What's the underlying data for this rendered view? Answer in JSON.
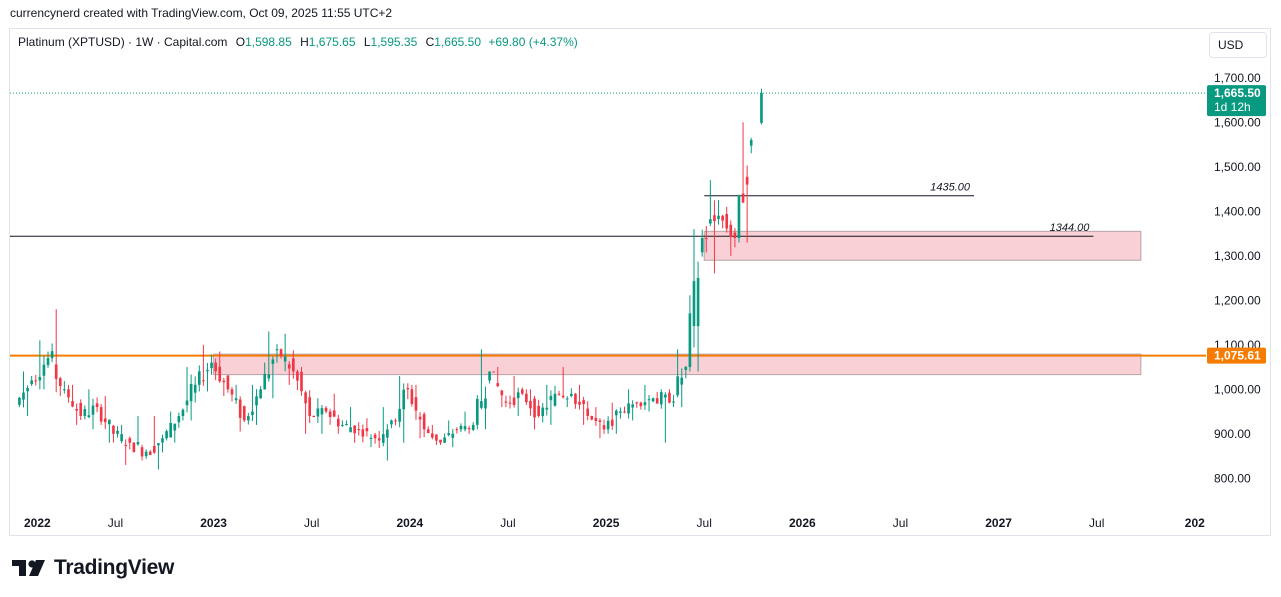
{
  "header": {
    "credit": "currencynerd created with TradingView.com, Oct 09, 2025 11:55 UTC+2"
  },
  "legend": {
    "symbol": "Platinum (XPTUSD) · 1W · Capital.com",
    "o_label": "O",
    "o_value": "1,598.85",
    "h_label": "H",
    "h_value": "1,675.65",
    "l_label": "L",
    "l_value": "1,595.35",
    "c_label": "C",
    "c_value": "1,665.50",
    "change": "+69.80 (+4.37%)"
  },
  "currency_button": "USD",
  "price_tag": {
    "price": "1,665.50",
    "countdown": "1d 12h",
    "color": "#089981"
  },
  "level_tag": {
    "price": "1,075.61",
    "color": "#f57c00"
  },
  "footer": {
    "brand": "TradingView"
  },
  "colors": {
    "up": "#089981",
    "down": "#f23645",
    "zone_fill": "#f8d0d5",
    "zone_border": "#b7a4a8"
  },
  "chart_data": {
    "type": "candlestick",
    "symbol": "Platinum (XPTUSD)",
    "timeframe": "1W",
    "y_ticks": [
      "1,700.00",
      "1,600.00",
      "1,500.00",
      "1,400.00",
      "1,300.00",
      "1,200.00",
      "1,100.00",
      "1,000.00",
      "900.00",
      "800.00"
    ],
    "y_tick_values": [
      1700,
      1600,
      1500,
      1400,
      1300,
      1200,
      1100,
      1000,
      900,
      800
    ],
    "ylim": [
      740,
      1740
    ],
    "x_ticks": [
      "2022",
      "Jul",
      "2023",
      "Jul",
      "2024",
      "Jul",
      "2025",
      "Jul",
      "2026",
      "Jul",
      "2027",
      "Jul",
      "202"
    ],
    "x_tick_months": [
      0,
      6,
      12,
      18,
      24,
      30,
      36,
      42,
      48,
      54,
      60,
      66,
      72
    ],
    "xlim_months": [
      -0.45,
      72.5
    ],
    "annotations": [
      {
        "label": "1435.00",
        "price": 1435,
        "start_month": 42.0,
        "end_month": 58.5,
        "type": "line"
      },
      {
        "label": "1344.00",
        "price": 1344,
        "start_month": -0.45,
        "end_month": 65.8,
        "type": "line"
      },
      {
        "label": "1,075.61",
        "price": 1075.61,
        "type": "horizontal-level"
      }
    ],
    "zones": [
      {
        "from_price": 1290,
        "to_price": 1355,
        "start_month": 42.0,
        "end_month": 68.7
      },
      {
        "from_price": 1033,
        "to_price": 1079,
        "start_month": 12.0,
        "end_month": 68.7
      }
    ],
    "candles_monthly_closes": [
      {
        "month": "2022-01",
        "open": 965,
        "close": 1020,
        "high": 1040,
        "low": 940
      },
      {
        "month": "2022-02",
        "open": 1020,
        "close": 1070,
        "high": 1110,
        "low": 1000
      },
      {
        "month": "2022-03",
        "open": 1070,
        "close": 1000,
        "high": 1180,
        "low": 985
      },
      {
        "month": "2022-04",
        "open": 1000,
        "close": 940,
        "high": 1010,
        "low": 920
      },
      {
        "month": "2022-05",
        "open": 940,
        "close": 960,
        "high": 1000,
        "low": 910
      },
      {
        "month": "2022-06",
        "open": 960,
        "close": 900,
        "high": 985,
        "low": 880
      },
      {
        "month": "2022-07",
        "open": 900,
        "close": 880,
        "high": 920,
        "low": 830
      },
      {
        "month": "2022-08",
        "open": 880,
        "close": 860,
        "high": 940,
        "low": 840
      },
      {
        "month": "2022-09",
        "open": 860,
        "close": 890,
        "high": 940,
        "low": 820
      },
      {
        "month": "2022-10",
        "open": 890,
        "close": 940,
        "high": 950,
        "low": 880
      },
      {
        "month": "2022-11",
        "open": 940,
        "close": 1010,
        "high": 1050,
        "low": 930
      },
      {
        "month": "2022-12",
        "open": 1010,
        "close": 1060,
        "high": 1100,
        "low": 995
      },
      {
        "month": "2023-01",
        "open": 1060,
        "close": 1000,
        "high": 1085,
        "low": 985
      },
      {
        "month": "2023-02",
        "open": 1000,
        "close": 930,
        "high": 1010,
        "low": 905
      },
      {
        "month": "2023-03",
        "open": 930,
        "close": 1000,
        "high": 1010,
        "low": 920
      },
      {
        "month": "2023-04",
        "open": 1000,
        "close": 1090,
        "high": 1130,
        "low": 980
      },
      {
        "month": "2023-05",
        "open": 1090,
        "close": 1040,
        "high": 1125,
        "low": 1010
      },
      {
        "month": "2023-06",
        "open": 1040,
        "close": 940,
        "high": 1050,
        "low": 900
      },
      {
        "month": "2023-07",
        "open": 940,
        "close": 950,
        "high": 980,
        "low": 900
      },
      {
        "month": "2023-08",
        "open": 950,
        "close": 920,
        "high": 990,
        "low": 900
      },
      {
        "month": "2023-09",
        "open": 920,
        "close": 910,
        "high": 960,
        "low": 880
      },
      {
        "month": "2023-10",
        "open": 910,
        "close": 890,
        "high": 935,
        "low": 870
      },
      {
        "month": "2023-11",
        "open": 890,
        "close": 930,
        "high": 960,
        "low": 840
      },
      {
        "month": "2023-12",
        "open": 930,
        "close": 1000,
        "high": 1030,
        "low": 880
      },
      {
        "month": "2024-01",
        "open": 1000,
        "close": 910,
        "high": 1010,
        "low": 890
      },
      {
        "month": "2024-02",
        "open": 910,
        "close": 880,
        "high": 920,
        "low": 875
      },
      {
        "month": "2024-03",
        "open": 880,
        "close": 910,
        "high": 930,
        "low": 870
      },
      {
        "month": "2024-04",
        "open": 910,
        "close": 920,
        "high": 950,
        "low": 900
      },
      {
        "month": "2024-05",
        "open": 920,
        "close": 1040,
        "high": 1090,
        "low": 910
      },
      {
        "month": "2024-06",
        "open": 1040,
        "close": 970,
        "high": 1050,
        "low": 960
      },
      {
        "month": "2024-07",
        "open": 970,
        "close": 990,
        "high": 1030,
        "low": 940
      },
      {
        "month": "2024-08",
        "open": 990,
        "close": 940,
        "high": 1000,
        "low": 910
      },
      {
        "month": "2024-09",
        "open": 940,
        "close": 990,
        "high": 1010,
        "low": 920
      },
      {
        "month": "2024-10",
        "open": 990,
        "close": 990,
        "high": 1050,
        "low": 960
      },
      {
        "month": "2024-11",
        "open": 990,
        "close": 940,
        "high": 1010,
        "low": 920
      },
      {
        "month": "2024-12",
        "open": 940,
        "close": 910,
        "high": 960,
        "low": 890
      },
      {
        "month": "2025-01",
        "open": 910,
        "close": 950,
        "high": 970,
        "low": 900
      },
      {
        "month": "2025-02",
        "open": 950,
        "close": 970,
        "high": 1000,
        "low": 930
      },
      {
        "month": "2025-03",
        "open": 970,
        "close": 980,
        "high": 1010,
        "low": 950
      },
      {
        "month": "2025-04",
        "open": 980,
        "close": 970,
        "high": 1000,
        "low": 880
      },
      {
        "month": "2025-05",
        "open": 970,
        "close": 1050,
        "high": 1090,
        "low": 960
      },
      {
        "month": "2025-06",
        "open": 1050,
        "close": 1340,
        "high": 1360,
        "low": 1040
      },
      {
        "month": "2025-07",
        "open": 1340,
        "close": 1390,
        "high": 1470,
        "low": 1260
      },
      {
        "month": "2025-08",
        "open": 1390,
        "close": 1340,
        "high": 1410,
        "low": 1300
      },
      {
        "month": "2025-09",
        "open": 1340,
        "close": 1560,
        "high": 1600,
        "low": 1330
      },
      {
        "month": "2025-10",
        "open": 1598.85,
        "close": 1665.5,
        "high": 1675.65,
        "low": 1595.35
      }
    ]
  }
}
